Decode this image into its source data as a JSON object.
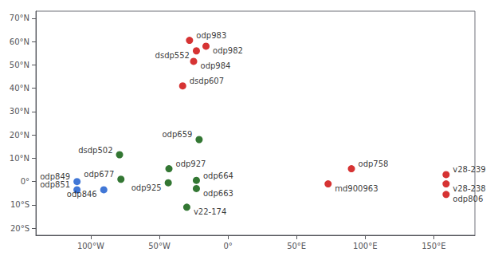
{
  "chart_data": {
    "type": "scatter",
    "x": [
      -28,
      -16,
      -25,
      -23,
      -33,
      -21,
      -43,
      -43.5,
      -23,
      -23,
      -30,
      -79,
      -78,
      -110,
      -110,
      -90.5,
      90,
      73,
      159,
      159,
      159
    ],
    "values": [
      60.5,
      58.0,
      51.5,
      56.0,
      41.0,
      18.0,
      5.5,
      -0.5,
      0.5,
      -3.0,
      -11.0,
      11.5,
      1.0,
      0.0,
      -3.5,
      -3.5,
      5.5,
      -1.0,
      3.0,
      -1.0,
      -5.5
    ],
    "labels": [
      "odp983",
      "odp982",
      "odp984",
      "dsdp552",
      "dsdp607",
      "odp659",
      "odp927",
      "odp925",
      "odp664",
      "odp663",
      "v22-174",
      "dsdp502",
      "odp677",
      "odp849",
      "odp851",
      "odp846",
      "odp758",
      "md900963",
      "v28-239",
      "v28-238",
      "odp806"
    ],
    "colors": [
      "#cc0000",
      "#cc0000",
      "#cc0000",
      "#cc0000",
      "#cc0000",
      "#005500",
      "#005500",
      "#005500",
      "#005500",
      "#005500",
      "#005500",
      "#005500",
      "#005500",
      "#1155cc",
      "#1155cc",
      "#1155cc",
      "#cc0000",
      "#cc0000",
      "#cc0000",
      "#cc0000",
      "#cc0000"
    ],
    "xlim": [
      -140,
      180
    ],
    "ylim": [
      -23,
      73
    ],
    "xticks": [
      {
        "value": -100,
        "label": "100°W"
      },
      {
        "value": -50,
        "label": "50°W"
      },
      {
        "value": 0,
        "label": "0°"
      },
      {
        "value": 50,
        "label": "50°E"
      },
      {
        "value": 100,
        "label": "100°E"
      },
      {
        "value": 150,
        "label": "150°E"
      }
    ],
    "yticks": [
      {
        "value": -20,
        "label": "20°S"
      },
      {
        "value": -10,
        "label": "10°S"
      },
      {
        "value": 0,
        "label": "0°"
      },
      {
        "value": 10,
        "label": "10°N"
      },
      {
        "value": 20,
        "label": "20°N"
      },
      {
        "value": 30,
        "label": "30°N"
      },
      {
        "value": 40,
        "label": "40°N"
      },
      {
        "value": 50,
        "label": "50°N"
      },
      {
        "value": 60,
        "label": "60°N"
      },
      {
        "value": 70,
        "label": "70°N"
      }
    ],
    "grid": false
  }
}
